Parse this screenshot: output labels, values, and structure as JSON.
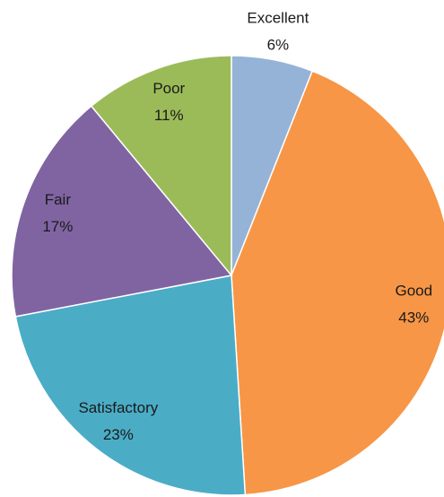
{
  "chart_data": {
    "type": "pie",
    "categories": [
      "Excellent",
      "Good",
      "Satisfactory",
      "Fair",
      "Poor"
    ],
    "values": [
      6,
      43,
      23,
      17,
      11
    ],
    "value_labels": [
      "6%",
      "43%",
      "23%",
      "17%",
      "11%"
    ],
    "colors": [
      "#95b3d7",
      "#f79646",
      "#4bacc6",
      "#8064a2",
      "#9bbb59"
    ]
  }
}
